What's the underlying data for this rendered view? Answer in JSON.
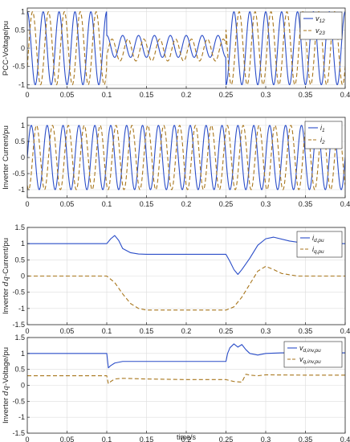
{
  "colors": {
    "series1": "#2A4DC8",
    "series2": "#A8761C",
    "axis": "#262626",
    "grid": "#dddddd"
  },
  "chart_data": [
    {
      "type": "line",
      "title": "",
      "xlabel": "",
      "ylabel": "PCC-Voltage/pu",
      "xlim": [
        0,
        0.4
      ],
      "ylim": [
        -1.1,
        1.1
      ],
      "xticks": [
        0,
        0.05,
        0.1,
        0.15,
        0.2,
        0.25,
        0.3,
        0.35,
        0.4
      ],
      "xtick_labels": [
        "0",
        "0.05",
        "0.1",
        "0.15",
        "0.2",
        "0.25",
        "0.3",
        "0.35",
        "0.4"
      ],
      "yticks": [
        -1,
        -0.5,
        0,
        0.5,
        1
      ],
      "ytick_labels": [
        "-1",
        "-0.5",
        "0",
        "0.5",
        "1"
      ],
      "legend": "top-right",
      "grid": true,
      "frequency_hz": 50,
      "series": [
        {
          "name": "v12",
          "name_main": "v",
          "name_sub": "12",
          "phase_deg": 90,
          "style": "solid",
          "amplitude_segments": [
            {
              "t": [
                0,
                0.1
              ],
              "amp": 1.0
            },
            {
              "t": [
                0.1,
                0.25
              ],
              "amp": 0.3,
              "offset": 0.05
            },
            {
              "t": [
                0.25,
                0.4
              ],
              "amp": 1.0
            }
          ]
        },
        {
          "name": "v23",
          "name_main": "v",
          "name_sub": "23",
          "phase_deg": -30,
          "style": "dashed",
          "amplitude_segments": [
            {
              "t": [
                0,
                0.1
              ],
              "amp": 1.0
            },
            {
              "t": [
                0.1,
                0.25
              ],
              "amp": 0.3,
              "offset": -0.05
            },
            {
              "t": [
                0.25,
                0.4
              ],
              "amp": 1.0
            }
          ]
        }
      ]
    },
    {
      "type": "line",
      "title": "",
      "xlabel": "",
      "ylabel": "Inverter Current/pu",
      "xlim": [
        0,
        0.4
      ],
      "ylim": [
        -1.25,
        1.25
      ],
      "xticks": [
        0,
        0.05,
        0.1,
        0.15,
        0.2,
        0.25,
        0.3,
        0.35,
        0.4
      ],
      "xtick_labels": [
        "0",
        "0.05",
        "0.1",
        "0.15",
        "0.2",
        "0.25",
        "0.3",
        "0.35",
        "0.4"
      ],
      "yticks": [
        -1,
        -0.5,
        0,
        0.5,
        1
      ],
      "ytick_labels": [
        "-1",
        "-0.5",
        "0",
        "0.5",
        "1"
      ],
      "legend": "top-right",
      "grid": true,
      "frequency_hz": 50,
      "series": [
        {
          "name": "i1",
          "name_main": "i",
          "name_sub": "1",
          "phase_deg": 0,
          "style": "solid",
          "amplitude_segments": [
            {
              "t": [
                0,
                0.4
              ],
              "amp": 1.0
            }
          ]
        },
        {
          "name": "i2",
          "name_main": "i",
          "name_sub": "2",
          "phase_deg": -120,
          "style": "dashed",
          "amplitude_segments": [
            {
              "t": [
                0,
                0.4
              ],
              "amp": 1.0
            }
          ]
        }
      ]
    },
    {
      "type": "line",
      "title": "",
      "xlabel": "",
      "ylabel": "Inverter dq-Current/pu",
      "ylabel_parts": [
        "Inverter ",
        "dq",
        "-Current/pu"
      ],
      "xlim": [
        0,
        0.4
      ],
      "ylim": [
        -1.5,
        1.5
      ],
      "xticks": [
        0,
        0.05,
        0.1,
        0.15,
        0.2,
        0.25,
        0.3,
        0.35,
        0.4
      ],
      "xtick_labels": [
        "0",
        "0.05",
        "0.1",
        "0.15",
        "0.2",
        "0.25",
        "0.3",
        "0.35",
        "0.4"
      ],
      "yticks": [
        -1.5,
        -1,
        -0.5,
        0,
        0.5,
        1,
        1.5
      ],
      "ytick_labels": [
        "-1.5",
        "-1",
        "-0.5",
        "0",
        "0.5",
        "1",
        "1.5"
      ],
      "legend": "top-right",
      "grid": true,
      "series": [
        {
          "name": "id,pu",
          "name_main": "i",
          "name_sub": "d,pu",
          "style": "solid",
          "x": [
            0,
            0.1,
            0.105,
            0.11,
            0.115,
            0.12,
            0.13,
            0.14,
            0.15,
            0.17,
            0.2,
            0.25,
            0.255,
            0.26,
            0.265,
            0.27,
            0.28,
            0.29,
            0.3,
            0.31,
            0.33,
            0.35,
            0.4
          ],
          "y": [
            1.0,
            1.0,
            1.15,
            1.25,
            1.1,
            0.85,
            0.72,
            0.68,
            0.67,
            0.67,
            0.67,
            0.67,
            0.45,
            0.2,
            0.05,
            0.2,
            0.55,
            0.95,
            1.15,
            1.2,
            1.08,
            1.01,
            1.0
          ]
        },
        {
          "name": "iq,pu",
          "name_main": "i",
          "name_sub": "q,pu",
          "style": "dashed",
          "x": [
            0,
            0.1,
            0.11,
            0.12,
            0.13,
            0.14,
            0.15,
            0.2,
            0.25,
            0.26,
            0.27,
            0.28,
            0.29,
            0.3,
            0.31,
            0.32,
            0.34,
            0.4
          ],
          "y": [
            0.0,
            0.0,
            -0.2,
            -0.55,
            -0.85,
            -1.0,
            -1.05,
            -1.05,
            -1.05,
            -0.95,
            -0.65,
            -0.25,
            0.15,
            0.3,
            0.2,
            0.08,
            0.0,
            0.0
          ]
        }
      ]
    },
    {
      "type": "line",
      "title": "",
      "xlabel": "time/s",
      "ylabel": "Inverter dq-Voltage/pu",
      "ylabel_parts": [
        "Inverter ",
        "dq",
        "-Voltage/pu"
      ],
      "xlim": [
        0,
        0.4
      ],
      "ylim": [
        -1.5,
        1.5
      ],
      "xticks": [
        0,
        0.05,
        0.1,
        0.15,
        0.2,
        0.25,
        0.3,
        0.35,
        0.4
      ],
      "xtick_labels": [
        "0",
        "0.05",
        "0.1",
        "0.15",
        "0.2",
        "0.25",
        "0.3",
        "0.35",
        "0.4"
      ],
      "yticks": [
        -1.5,
        -1,
        -0.5,
        0,
        0.5,
        1,
        1.5
      ],
      "ytick_labels": [
        "-1.5",
        "-1",
        "-0.5",
        "0",
        "0.5",
        "1",
        "1.5"
      ],
      "legend": "top-right",
      "grid": true,
      "series": [
        {
          "name": "vd,inv,pu",
          "name_main": "v",
          "name_sub": "d,inv,pu",
          "style": "solid",
          "x": [
            0,
            0.1,
            0.102,
            0.105,
            0.11,
            0.12,
            0.14,
            0.2,
            0.25,
            0.252,
            0.255,
            0.26,
            0.265,
            0.27,
            0.275,
            0.28,
            0.29,
            0.3,
            0.32,
            0.35,
            0.4
          ],
          "y": [
            1.0,
            1.0,
            0.55,
            0.62,
            0.7,
            0.75,
            0.75,
            0.75,
            0.75,
            1.0,
            1.18,
            1.3,
            1.2,
            1.28,
            1.12,
            1.0,
            0.95,
            1.0,
            1.02,
            1.02,
            1.02
          ]
        },
        {
          "name": "vq,inv,pu",
          "name_main": "v",
          "name_sub": "q,inv,pu",
          "style": "dashed",
          "x": [
            0,
            0.1,
            0.102,
            0.105,
            0.11,
            0.12,
            0.15,
            0.2,
            0.25,
            0.26,
            0.27,
            0.275,
            0.28,
            0.29,
            0.3,
            0.35,
            0.4
          ],
          "y": [
            0.3,
            0.3,
            0.05,
            0.12,
            0.2,
            0.22,
            0.2,
            0.18,
            0.18,
            0.12,
            0.1,
            0.35,
            0.32,
            0.3,
            0.33,
            0.32,
            0.32
          ]
        }
      ]
    }
  ]
}
